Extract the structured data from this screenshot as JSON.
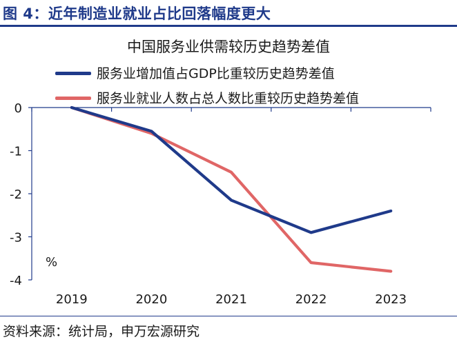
{
  "figure": {
    "title": "图 4：近年制造业就业占比回落幅度更大",
    "source": "资料来源：统计局，申万宏源研究"
  },
  "chart_data": {
    "type": "line",
    "title": "中国服务业供需较历史趋势差值",
    "categories": [
      "2019",
      "2020",
      "2021",
      "2022",
      "2023"
    ],
    "series": [
      {
        "name": "服务业增加值占GDP比重较历史趋势差值",
        "color": "#1f3a8a",
        "values": [
          0,
          -0.55,
          -2.15,
          -2.9,
          -2.4
        ]
      },
      {
        "name": "服务业就业人数占总人数比重较历史趋势差值",
        "color": "#e06666",
        "values": [
          0,
          -0.6,
          -1.5,
          -3.6,
          -3.8
        ]
      }
    ],
    "ylim": [
      -4,
      0
    ],
    "yticks": [
      0,
      -1,
      -2,
      -3,
      -4
    ],
    "ylabel": "%",
    "xlabel": "",
    "grid": false,
    "legend_position": "top-left"
  }
}
